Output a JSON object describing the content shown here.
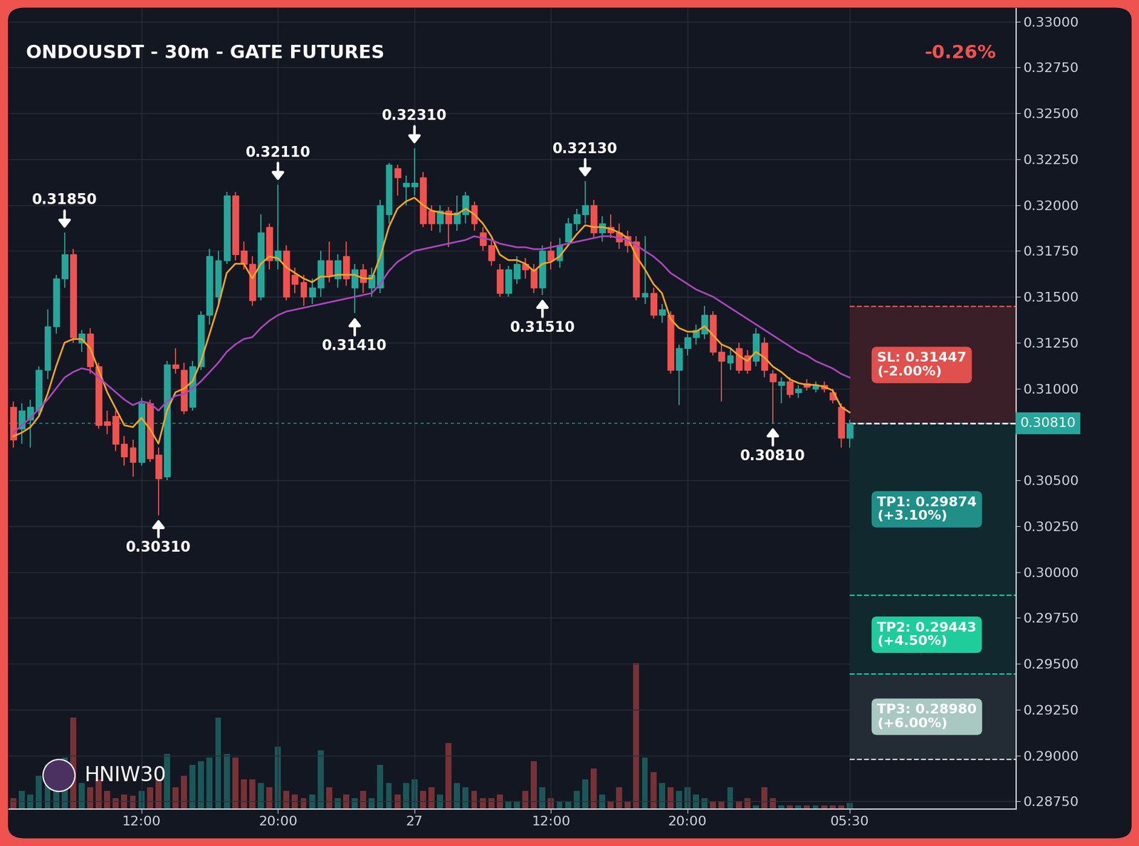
{
  "chart_data": {
    "type": "candlestick",
    "title": "ONDOUSDT - 30m - GATE FUTURES",
    "subtitle": "-0.26%",
    "watermark": "HNIW30",
    "grid": true,
    "categories": [
      null,
      null,
      null,
      null,
      null,
      null,
      null,
      null,
      null,
      null,
      null,
      null,
      null,
      null,
      null,
      "12:00",
      null,
      null,
      null,
      null,
      null,
      null,
      null,
      null,
      null,
      null,
      null,
      null,
      null,
      null,
      null,
      "20:00",
      null,
      null,
      null,
      null,
      null,
      null,
      null,
      null,
      null,
      null,
      null,
      null,
      null,
      null,
      null,
      "27",
      null,
      null,
      null,
      null,
      null,
      null,
      null,
      null,
      null,
      null,
      null,
      null,
      null,
      null,
      null,
      "12:00",
      null,
      null,
      null,
      null,
      null,
      null,
      null,
      null,
      null,
      null,
      null,
      null,
      null,
      null,
      null,
      "20:00",
      null,
      null,
      null,
      null,
      null,
      null,
      null,
      null,
      null,
      null,
      null,
      null,
      null,
      null,
      null,
      null,
      null,
      null,
      "05:30",
      null,
      null,
      null,
      null,
      null,
      null,
      null,
      null,
      null,
      null,
      null,
      null,
      null,
      null,
      null,
      null,
      null,
      null,
      null
    ],
    "open": [
      0.309,
      0.3078,
      0.3083,
      0.3088,
      0.311,
      0.3134,
      0.316,
      0.3173,
      0.3125,
      0.313,
      0.3112,
      0.3082,
      0.3085,
      0.307,
      0.3068,
      0.306,
      0.3092,
      0.3064,
      0.3052,
      0.3113,
      0.311,
      0.309,
      0.3112,
      0.314,
      0.315,
      0.317,
      0.3205,
      0.3175,
      0.3168,
      0.315,
      0.3188,
      0.317,
      0.3175,
      0.3162,
      0.3158,
      0.315,
      0.3155,
      0.317,
      0.316,
      0.3172,
      0.3155,
      0.3165,
      0.3155,
      0.3155,
      0.3195,
      0.322,
      0.321,
      0.321,
      0.3215,
      0.3197,
      0.319,
      0.3197,
      0.319,
      0.3195,
      0.32,
      0.3185,
      0.3178,
      0.3165,
      0.3152,
      0.316,
      0.3168,
      0.3165,
      0.3155,
      0.3175,
      0.317,
      0.318,
      0.319,
      0.3195,
      0.32,
      0.3185,
      0.3188,
      0.3185,
      0.3183,
      0.318,
      0.315,
      0.3152,
      0.314,
      0.314,
      0.311,
      0.3122,
      0.3128,
      0.313,
      0.314,
      0.312,
      0.3114,
      0.3122,
      0.3118,
      0.3115,
      0.3125,
      0.3108,
      0.3102,
      0.3104,
      0.3098,
      0.3103,
      0.31,
      0.3102,
      0.3098,
      0.309,
      0.3073,
      null,
      null,
      null,
      null,
      null,
      null,
      null,
      null,
      null,
      null,
      null,
      null,
      null,
      null,
      null,
      null,
      null,
      null,
      null
    ],
    "high": [
      0.3093,
      0.3092,
      0.3094,
      0.3112,
      0.3143,
      0.3162,
      0.3185,
      0.3176,
      0.3132,
      0.3133,
      0.3114,
      0.3088,
      0.3088,
      0.3074,
      0.3072,
      0.3095,
      0.3094,
      0.3068,
      0.3115,
      0.3122,
      0.3114,
      0.3115,
      0.3142,
      0.3176,
      0.3175,
      0.3207,
      0.3207,
      0.318,
      0.3172,
      0.3195,
      0.319,
      0.3211,
      0.3178,
      0.3166,
      0.3162,
      0.316,
      0.3175,
      0.318,
      0.3173,
      0.318,
      0.3168,
      0.3168,
      0.3166,
      0.3203,
      0.3223,
      0.3222,
      0.3216,
      0.3231,
      0.3218,
      0.32,
      0.32,
      0.3199,
      0.3205,
      0.3207,
      0.3202,
      0.3188,
      0.3181,
      0.3168,
      0.3167,
      0.3172,
      0.3171,
      0.3168,
      0.3178,
      0.318,
      0.3182,
      0.3193,
      0.3198,
      0.3213,
      0.3203,
      0.3194,
      0.3195,
      0.319,
      0.3186,
      0.3183,
      0.3183,
      0.3155,
      0.3146,
      0.3142,
      0.3124,
      0.313,
      0.3135,
      0.3145,
      0.3142,
      0.3124,
      0.3122,
      0.3125,
      0.3121,
      0.3133,
      0.3128,
      0.311,
      0.3106,
      0.3106,
      0.3102,
      0.3105,
      0.3104,
      0.3104,
      0.31,
      0.3092,
      0.3083,
      null,
      null,
      null,
      null,
      null,
      null,
      null,
      null,
      null,
      null,
      null,
      null,
      null,
      null,
      null,
      null,
      null,
      null,
      null
    ],
    "low": [
      0.3068,
      0.307,
      0.3068,
      0.3085,
      0.3105,
      0.313,
      0.3155,
      0.3125,
      0.312,
      0.3108,
      0.3078,
      0.3075,
      0.3066,
      0.3058,
      0.3052,
      0.3058,
      0.306,
      0.3031,
      0.305,
      0.3108,
      0.3086,
      0.3088,
      0.311,
      0.3135,
      0.3146,
      0.3168,
      0.317,
      0.3165,
      0.3145,
      0.3148,
      0.3165,
      0.3165,
      0.3148,
      0.3152,
      0.3145,
      0.3146,
      0.315,
      0.3158,
      0.3155,
      0.3156,
      0.3141,
      0.3152,
      0.315,
      0.3152,
      0.319,
      0.3205,
      0.32,
      0.3205,
      0.3188,
      0.3186,
      0.3185,
      0.3177,
      0.3186,
      0.319,
      0.3186,
      0.3175,
      0.3167,
      0.315,
      0.315,
      0.3157,
      0.316,
      0.3152,
      0.3151,
      0.3165,
      0.3166,
      0.3178,
      0.3186,
      0.319,
      0.3182,
      0.318,
      0.3182,
      0.3176,
      0.3174,
      0.3148,
      0.3146,
      0.3138,
      0.3136,
      0.3108,
      0.3091,
      0.3118,
      0.3124,
      0.3127,
      0.3118,
      0.3093,
      0.311,
      0.3108,
      0.3108,
      0.3112,
      0.3106,
      0.3081,
      0.3092,
      0.3095,
      0.3095,
      0.3099,
      0.3098,
      0.3098,
      0.3092,
      0.3068,
      0.3068,
      null,
      null,
      null,
      null,
      null,
      null,
      null,
      null,
      null,
      null,
      null,
      null,
      null,
      null,
      null,
      null,
      null,
      null,
      null
    ],
    "close": [
      0.3072,
      0.3088,
      0.309,
      0.311,
      0.3134,
      0.316,
      0.3173,
      0.3128,
      0.313,
      0.3112,
      0.308,
      0.308,
      0.307,
      0.3063,
      0.306,
      0.3092,
      0.3062,
      0.3051,
      0.3113,
      0.3111,
      0.3088,
      0.3112,
      0.314,
      0.3172,
      0.317,
      0.3205,
      0.3173,
      0.3168,
      0.3148,
      0.3185,
      0.317,
      0.3175,
      0.315,
      0.3157,
      0.315,
      0.3155,
      0.317,
      0.3162,
      0.317,
      0.316,
      0.3165,
      0.3158,
      0.3162,
      0.32,
      0.3222,
      0.3215,
      0.3212,
      0.3212,
      0.319,
      0.319,
      0.3197,
      0.319,
      0.3196,
      0.3205,
      0.319,
      0.3178,
      0.317,
      0.3152,
      0.3165,
      0.3168,
      0.3165,
      0.3155,
      0.3175,
      0.317,
      0.3178,
      0.319,
      0.3195,
      0.32,
      0.3185,
      0.319,
      0.3185,
      0.318,
      0.3178,
      0.315,
      0.3152,
      0.314,
      0.3143,
      0.311,
      0.3122,
      0.3128,
      0.3132,
      0.314,
      0.312,
      0.3115,
      0.3118,
      0.311,
      0.311,
      0.313,
      0.311,
      0.3104,
      0.3104,
      0.3097,
      0.31,
      0.3101,
      0.3102,
      0.31,
      0.3094,
      0.3073,
      0.3081,
      null,
      null,
      null,
      null,
      null,
      null,
      null,
      null,
      null,
      null,
      null,
      null,
      null,
      null,
      null,
      null,
      null,
      null,
      null
    ],
    "volume": [
      15,
      25,
      20,
      45,
      60,
      50,
      70,
      125,
      35,
      30,
      40,
      25,
      15,
      20,
      18,
      25,
      30,
      40,
      75,
      30,
      45,
      60,
      65,
      70,
      125,
      75,
      70,
      40,
      40,
      35,
      30,
      85,
      25,
      20,
      15,
      20,
      80,
      30,
      15,
      20,
      15,
      25,
      15,
      60,
      35,
      20,
      35,
      40,
      25,
      30,
      20,
      90,
      35,
      30,
      25,
      15,
      15,
      20,
      10,
      10,
      25,
      65,
      30,
      15,
      10,
      10,
      25,
      40,
      55,
      20,
      10,
      30,
      10,
      200,
      70,
      50,
      35,
      30,
      25,
      30,
      20,
      15,
      10,
      10,
      30,
      10,
      15,
      5,
      30,
      15,
      5,
      5,
      5,
      5,
      5,
      5,
      5,
      5,
      8,
      null,
      null,
      null,
      null,
      null,
      null,
      null,
      null,
      null,
      null,
      null,
      null,
      null,
      null,
      null,
      null,
      null,
      null,
      null
    ],
    "y2lim": [
      0,
      1100
    ],
    "y2ticks": [],
    "lines": [
      {
        "color": "#f5a623",
        "values": [
          0.3074,
          0.3076,
          0.3079,
          0.3085,
          0.3097,
          0.3112,
          0.3125,
          0.3127,
          0.3127,
          0.3122,
          0.311,
          0.3098,
          0.3089,
          0.308,
          0.3079,
          0.3084,
          0.3078,
          0.307,
          0.3088,
          0.3098,
          0.31,
          0.3104,
          0.3115,
          0.313,
          0.3145,
          0.3163,
          0.3168,
          0.3168,
          0.316,
          0.3168,
          0.3172,
          0.3171,
          0.3166,
          0.3163,
          0.316,
          0.3158,
          0.3161,
          0.3161,
          0.3162,
          0.3162,
          0.3162,
          0.316,
          0.316,
          0.3172,
          0.3188,
          0.3198,
          0.3202,
          0.3204,
          0.32,
          0.3197,
          0.3196,
          0.3195,
          0.3195,
          0.3198,
          0.3195,
          0.319,
          0.3183,
          0.3173,
          0.317,
          0.317,
          0.3168,
          0.3164,
          0.3168,
          0.3169,
          0.3172,
          0.3178,
          0.3184,
          0.3189,
          0.3188,
          0.3188,
          0.3187,
          0.3185,
          0.3182,
          0.3172,
          0.3165,
          0.3157,
          0.3152,
          0.3138,
          0.3133,
          0.3131,
          0.3131,
          0.3134,
          0.3129,
          0.3124,
          0.3122,
          0.3118,
          0.3115,
          0.312,
          0.3117,
          0.3112,
          0.3109,
          0.3105,
          0.3103,
          0.3102,
          0.3102,
          0.3101,
          0.3099,
          0.309,
          0.3087,
          null,
          null,
          null,
          null,
          null,
          null,
          null,
          null,
          null,
          null,
          null,
          null,
          null,
          null,
          null,
          null,
          null,
          null,
          null
        ]
      },
      {
        "color": "#ab47bc",
        "values": [
          0.3076,
          0.308,
          0.3084,
          0.3089,
          0.3094,
          0.31,
          0.3106,
          0.3109,
          0.3111,
          0.311,
          0.3106,
          0.3102,
          0.3098,
          0.3094,
          0.3091,
          0.3093,
          0.3092,
          0.3088,
          0.3093,
          0.3096,
          0.3097,
          0.31,
          0.3104,
          0.3109,
          0.3114,
          0.312,
          0.3124,
          0.3127,
          0.3128,
          0.3133,
          0.3137,
          0.314,
          0.3142,
          0.3143,
          0.3144,
          0.3145,
          0.3146,
          0.3147,
          0.3148,
          0.3149,
          0.315,
          0.3151,
          0.3152,
          0.3157,
          0.3164,
          0.3169,
          0.3172,
          0.3175,
          0.3176,
          0.3177,
          0.3178,
          0.3179,
          0.318,
          0.3181,
          0.3183,
          0.3182,
          0.3181,
          0.3179,
          0.3178,
          0.3177,
          0.3177,
          0.3176,
          0.3176,
          0.3177,
          0.3178,
          0.3179,
          0.318,
          0.3181,
          0.3182,
          0.3183,
          0.3183,
          0.3182,
          0.3181,
          0.3178,
          0.3175,
          0.3172,
          0.3168,
          0.3163,
          0.316,
          0.3157,
          0.3154,
          0.3152,
          0.315,
          0.3147,
          0.3144,
          0.3141,
          0.3138,
          0.3135,
          0.3132,
          0.3129,
          0.3126,
          0.3123,
          0.312,
          0.3118,
          0.3115,
          0.3113,
          0.3111,
          0.3108,
          0.3106,
          null,
          null,
          null,
          null,
          null,
          null,
          null,
          null,
          null,
          null,
          null,
          null,
          null,
          null,
          null,
          null,
          null,
          null,
          null
        ]
      }
    ],
    "ylim": [
      0.2871,
      0.3307
    ],
    "yticks": [
      {
        "value": 0.2875,
        "label": "0.28750"
      },
      {
        "value": 0.29,
        "label": "0.29000"
      },
      {
        "value": 0.2925,
        "label": "0.29250"
      },
      {
        "value": 0.295,
        "label": "0.29500"
      },
      {
        "value": 0.2975,
        "label": "0.29750"
      },
      {
        "value": 0.3,
        "label": "0.30000"
      },
      {
        "value": 0.3025,
        "label": "0.30250"
      },
      {
        "value": 0.305,
        "label": "0.30500"
      },
      {
        "value": 0.31,
        "label": "0.31000"
      },
      {
        "value": 0.3125,
        "label": "0.31250"
      },
      {
        "value": 0.315,
        "label": "0.31500"
      },
      {
        "value": 0.3175,
        "label": "0.31750"
      },
      {
        "value": 0.32,
        "label": "0.32000"
      },
      {
        "value": 0.3225,
        "label": "0.32250"
      },
      {
        "value": 0.325,
        "label": "0.32500"
      },
      {
        "value": 0.3275,
        "label": "0.32750"
      },
      {
        "value": 0.33,
        "label": "0.33000"
      }
    ],
    "annotations": [
      {
        "x": 6,
        "value": 0.3185,
        "label": "0.31850",
        "position": "above"
      },
      {
        "x": 17,
        "value": 0.3031,
        "label": "0.30310",
        "position": "below"
      },
      {
        "x": 31,
        "value": 0.3211,
        "label": "0.32110",
        "position": "above"
      },
      {
        "x": 40,
        "value": 0.3141,
        "label": "0.31410",
        "position": "below"
      },
      {
        "x": 47,
        "value": 0.3231,
        "label": "0.32310",
        "position": "above"
      },
      {
        "x": 62,
        "value": 0.3151,
        "label": "0.31510",
        "position": "below"
      },
      {
        "x": 67,
        "value": 0.3213,
        "label": "0.32130",
        "position": "above"
      },
      {
        "x": 89,
        "value": 0.3081,
        "label": "0.30810",
        "position": "below"
      }
    ],
    "trade": {
      "entry": {
        "value": 0.3081,
        "label": "0.30810"
      },
      "targets": [
        {
          "value": 0.31447,
          "label": "SL: 0.31447",
          "change": "(-2.00%)"
        },
        {
          "value": 0.29874,
          "label": "TP1: 0.29874",
          "change": "(+3.10%)"
        },
        {
          "value": 0.29443,
          "label": "TP2: 0.29443",
          "change": "(+4.50%)"
        },
        {
          "value": 0.2898,
          "label": "TP3: 0.28980",
          "change": "(+6.00%)"
        }
      ]
    }
  }
}
